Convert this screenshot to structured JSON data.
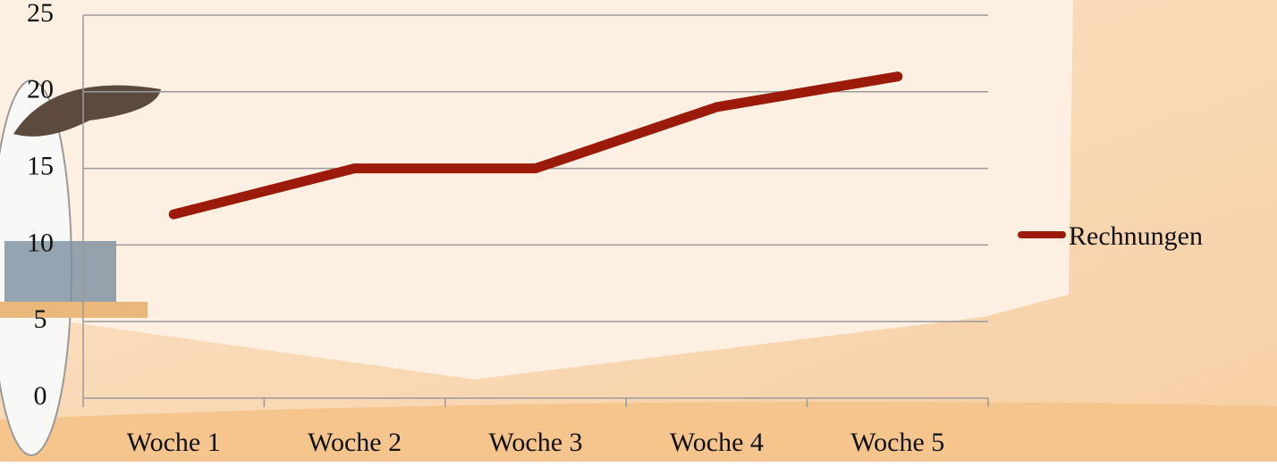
{
  "chart_data": {
    "type": "line",
    "categories": [
      "Woche 1",
      "Woche 2",
      "Woche 3",
      "Woche 4",
      "Woche 5"
    ],
    "series": [
      {
        "name": "Rechnungen",
        "color": "#9b1a0a",
        "values": [
          12,
          15,
          15,
          19,
          21
        ]
      }
    ],
    "ylim": [
      0,
      25
    ],
    "yticks": [
      0,
      5,
      10,
      15,
      20,
      25
    ],
    "grid": true,
    "legend": "right"
  }
}
